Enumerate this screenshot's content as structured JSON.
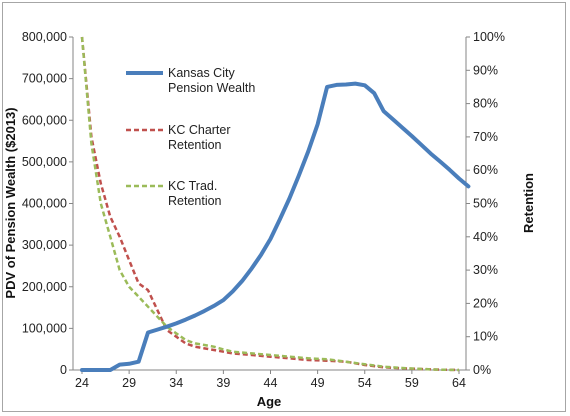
{
  "chart_data": {
    "type": "line",
    "title": "",
    "xlabel": "Age",
    "ylabel_left": "PDV of Pension Wealth ($2013)",
    "ylabel_right": "Retention",
    "xlim": [
      24,
      65
    ],
    "x_ticks": [
      24,
      29,
      34,
      39,
      44,
      49,
      54,
      59,
      64
    ],
    "y_left_lim": [
      0,
      800000
    ],
    "y_left_ticks": [
      0,
      100000,
      200000,
      300000,
      400000,
      500000,
      600000,
      700000,
      800000
    ],
    "y_left_tick_labels": [
      "0",
      "100,000",
      "200,000",
      "300,000",
      "400,000",
      "500,000",
      "600,000",
      "700,000",
      "800,000"
    ],
    "y_right_lim": [
      0,
      100
    ],
    "y_right_ticks": [
      0,
      10,
      20,
      30,
      40,
      50,
      60,
      70,
      80,
      90,
      100
    ],
    "y_right_tick_labels": [
      "0%",
      "10%",
      "20%",
      "30%",
      "40%",
      "50%",
      "60%",
      "70%",
      "80%",
      "90%",
      "100%"
    ],
    "grid": false,
    "legend_position": "inside-left",
    "series": [
      {
        "name": "Kansas City Pension Wealth",
        "axis": "left",
        "color": "#4a7ebb",
        "dash": "solid",
        "x": [
          24,
          25,
          26,
          27,
          28,
          29,
          30,
          31,
          32,
          33,
          34,
          35,
          36,
          37,
          38,
          39,
          40,
          41,
          42,
          43,
          44,
          45,
          46,
          47,
          48,
          49,
          50,
          51,
          52,
          53,
          54,
          55,
          56,
          57,
          58,
          59,
          60,
          61,
          62,
          63,
          64,
          65
        ],
        "values": [
          0,
          0,
          0,
          0,
          13000,
          15000,
          20000,
          90000,
          97000,
          104000,
          112000,
          121000,
          131000,
          142000,
          154000,
          168000,
          189000,
          214000,
          244000,
          277000,
          315000,
          362000,
          412000,
          467000,
          525000,
          590000,
          680000,
          685000,
          686000,
          688000,
          684000,
          665000,
          622000,
          602000,
          582000,
          562000,
          541000,
          520000,
          501000,
          481000,
          460000,
          441000
        ]
      },
      {
        "name": "KC Charter Retention",
        "axis": "right",
        "color": "#c0504d",
        "dash": "dashed",
        "x": [
          24,
          25,
          26,
          27,
          28,
          29,
          30,
          31,
          32,
          33,
          34,
          35,
          36,
          37,
          38,
          39,
          40,
          42,
          44,
          46,
          48,
          50,
          52,
          54,
          56,
          58,
          60,
          62,
          64
        ],
        "values": [
          100,
          70,
          56,
          46,
          40,
          33,
          26,
          24,
          18,
          12,
          10,
          8,
          7,
          6.5,
          6,
          5.5,
          5,
          4.5,
          4,
          3.5,
          3,
          2.8,
          2.5,
          1.5,
          0.8,
          0.5,
          0.3,
          0.1,
          0
        ]
      },
      {
        "name": "KC Trad. Retention",
        "axis": "right",
        "color": "#9bbb59",
        "dash": "dashed",
        "x": [
          24,
          25,
          26,
          27,
          28,
          29,
          30,
          31,
          32,
          33,
          34,
          35,
          36,
          37,
          38,
          39,
          40,
          42,
          44,
          46,
          48,
          50,
          52,
          54,
          56,
          58,
          60,
          62,
          64
        ],
        "values": [
          100,
          68,
          50,
          40,
          30,
          25,
          22,
          19,
          16,
          13,
          11,
          9,
          8,
          7.5,
          7,
          6.2,
          5.5,
          5,
          4.5,
          4,
          3.5,
          3.2,
          2.5,
          1.7,
          1,
          0.6,
          0.3,
          0.1,
          0
        ]
      }
    ]
  },
  "legend": {
    "items": [
      {
        "line1": "Kansas City",
        "line2": "Pension Wealth"
      },
      {
        "line1": "KC Charter",
        "line2": "Retention"
      },
      {
        "line1": "KC Trad.",
        "line2": "Retention"
      }
    ]
  }
}
